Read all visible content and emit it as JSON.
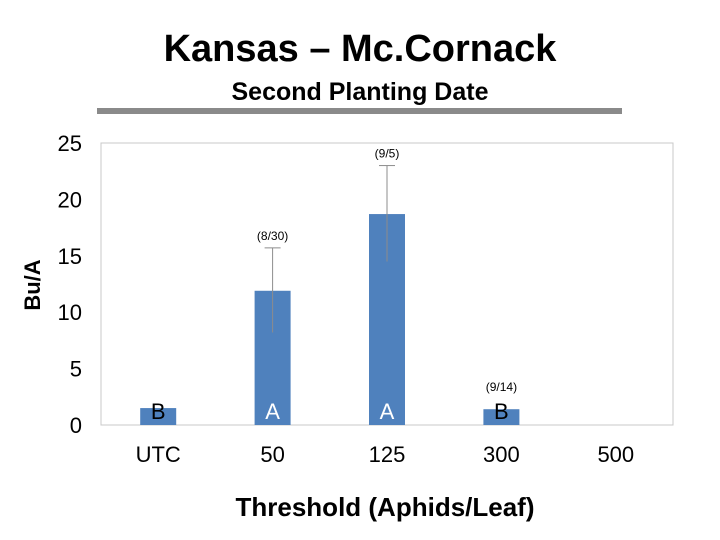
{
  "header": {
    "title": "Kansas – Mc.Cornack",
    "subtitle": "Second Planting Date"
  },
  "chart_data": {
    "type": "bar",
    "title": "",
    "xlabel": "Threshold (Aphids/Leaf)",
    "ylabel": "Bu/A",
    "ylim": [
      0,
      25
    ],
    "yticks": [
      0,
      5,
      10,
      15,
      20,
      25
    ],
    "categories": [
      "UTC",
      "50",
      "125",
      "300",
      "500"
    ],
    "values": [
      1.5,
      11.9,
      18.7,
      1.4,
      null
    ],
    "error_bars": [
      null,
      [
        8.2,
        15.7
      ],
      [
        14.5,
        23.0
      ],
      null,
      null
    ],
    "group_letters": [
      "B",
      "A",
      "A",
      "B",
      ""
    ],
    "date_labels": [
      "",
      "(8/30)",
      "(9/5)",
      "(9/14)",
      ""
    ],
    "colors": {
      "bar": "#4F81BD",
      "error": "#8c8c8c",
      "axis": "#c8c8c8"
    },
    "grid": false,
    "legend": "none"
  }
}
